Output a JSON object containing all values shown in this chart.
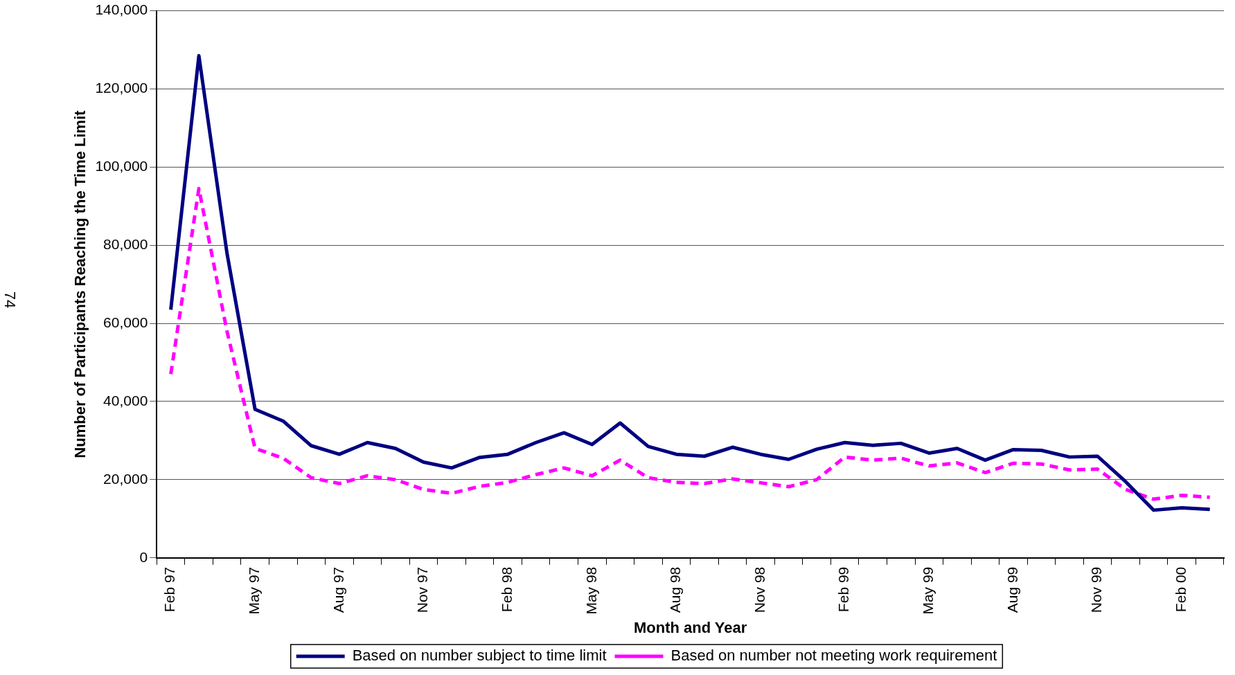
{
  "chart_data": {
    "type": "line",
    "xlabel": "Month and Year",
    "ylabel": "Number of Participants Reaching the Time Limit",
    "categories": [
      "Feb 97",
      null,
      null,
      "May 97",
      null,
      null,
      "Aug 97",
      null,
      null,
      "Nov 97",
      null,
      null,
      "Feb 98",
      null,
      null,
      "May 98",
      null,
      null,
      "Aug 98",
      null,
      null,
      "Nov 98",
      null,
      null,
      "Feb 99",
      null,
      null,
      "May 99",
      null,
      null,
      "Aug 99",
      null,
      null,
      "Nov 99",
      null,
      null,
      "Feb 00",
      null
    ],
    "series": [
      {
        "name": "Based on number subject to time limit",
        "color": "#000080",
        "line_style": "solid",
        "values": [
          63500,
          128500,
          78000,
          38000,
          35000,
          28700,
          26500,
          29500,
          28000,
          24500,
          23000,
          25700,
          26500,
          29500,
          32000,
          29000,
          34500,
          28500,
          26500,
          26000,
          28300,
          26500,
          25200,
          27800,
          29500,
          28800,
          29300,
          26800,
          28000,
          25000,
          27700,
          27500,
          25800,
          26000,
          19500,
          12200,
          12800,
          12400
        ]
      },
      {
        "name": "Based on number not meeting work requirement",
        "color": "#ff00ff",
        "line_style": "dashed",
        "values": [
          47000,
          94500,
          58000,
          28000,
          25500,
          20500,
          19000,
          21000,
          20000,
          17500,
          16500,
          18300,
          19300,
          21300,
          23000,
          21000,
          25000,
          20500,
          19300,
          19000,
          20200,
          19200,
          18200,
          20000,
          25800,
          25000,
          25500,
          23500,
          24300,
          21800,
          24200,
          24000,
          22500,
          22700,
          17500,
          15000,
          16000,
          15500
        ]
      }
    ],
    "ylim": [
      0,
      140000
    ],
    "yticks": [
      {
        "value": 0,
        "label": "0"
      },
      {
        "value": 20000,
        "label": "20,000"
      },
      {
        "value": 40000,
        "label": "40,000"
      },
      {
        "value": 60000,
        "label": "60,000"
      },
      {
        "value": 80000,
        "label": "80,000"
      },
      {
        "value": 100000,
        "label": "100,000"
      },
      {
        "value": 120000,
        "label": "120,000"
      },
      {
        "value": 140000,
        "label": "140,000"
      }
    ],
    "grid": "y",
    "legend": "bottom",
    "marker": "none",
    "annotations": [
      "74"
    ]
  }
}
